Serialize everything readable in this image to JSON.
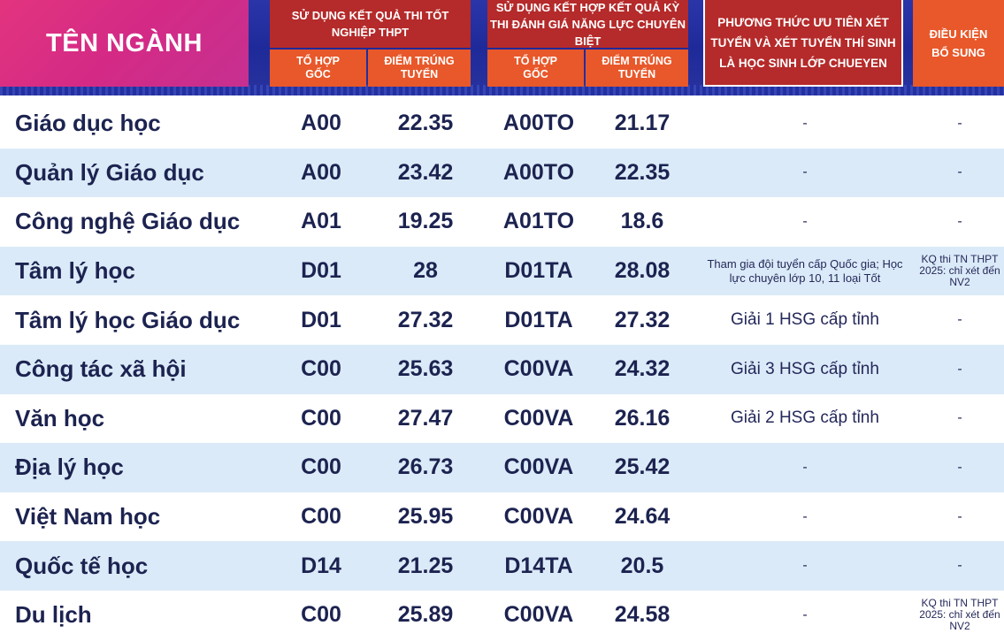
{
  "header": {
    "major_title": "TÊN NGÀNH",
    "group1": {
      "title": "Sử dụng kết quả thi tốt nghiệp THPT",
      "col_a": "Tổ hợp gốc",
      "col_b": "Điểm trúng tuyển"
    },
    "group2": {
      "title": "Sử dụng kết hợp kết quả kỳ thi đánh giá năng lực chuyên biệt",
      "col_a": "Tổ hợp gốc",
      "col_b": "Điểm trúng tuyển"
    },
    "group3_title": "Phương thức ưu tiên xét tuyển và xét tuyển thí sinh là học sinh lớp chueyen",
    "group4_title": "Điều kiện bổ sung"
  },
  "rows": [
    {
      "name": "Giáo dục học",
      "combo1": "A00",
      "score1": "22.35",
      "combo2": "A00TO",
      "score2": "21.17",
      "priority": "-",
      "extra": "-"
    },
    {
      "name": "Quản lý Giáo dục",
      "combo1": "A00",
      "score1": "23.42",
      "combo2": "A00TO",
      "score2": "22.35",
      "priority": "-",
      "extra": "-"
    },
    {
      "name": "Công nghệ Giáo dục",
      "combo1": "A01",
      "score1": "19.25",
      "combo2": "A01TO",
      "score2": "18.6",
      "priority": "-",
      "extra": "-"
    },
    {
      "name": "Tâm lý học",
      "combo1": "D01",
      "score1": "28",
      "combo2": "D01TA",
      "score2": "28.08",
      "priority": "Tham gia đội tuyển cấp Quốc gia; Học lực chuyên lớp 10, 11 loại Tốt",
      "extra": "KQ thi TN THPT 2025: chỉ xét đến NV2"
    },
    {
      "name": "Tâm lý học Giáo dục",
      "combo1": "D01",
      "score1": "27.32",
      "combo2": "D01TA",
      "score2": "27.32",
      "priority": "Giải 1 HSG cấp tỉnh",
      "extra": "-"
    },
    {
      "name": "Công tác xã hội",
      "combo1": "C00",
      "score1": "25.63",
      "combo2": "C00VA",
      "score2": "24.32",
      "priority": "Giải 3 HSG cấp tỉnh",
      "extra": "-"
    },
    {
      "name": "Văn học",
      "combo1": "C00",
      "score1": "27.47",
      "combo2": "C00VA",
      "score2": "26.16",
      "priority": "Giải 2 HSG cấp tỉnh",
      "extra": "-"
    },
    {
      "name": "Địa lý học",
      "combo1": "C00",
      "score1": "26.73",
      "combo2": "C00VA",
      "score2": "25.42",
      "priority": "-",
      "extra": "-"
    },
    {
      "name": "Việt Nam học",
      "combo1": "C00",
      "score1": "25.95",
      "combo2": "C00VA",
      "score2": "24.64",
      "priority": "-",
      "extra": "-"
    },
    {
      "name": "Quốc tế học",
      "combo1": "D14",
      "score1": "21.25",
      "combo2": "D14TA",
      "score2": "20.5",
      "priority": "-",
      "extra": "-"
    },
    {
      "name": "Du lịch",
      "combo1": "C00",
      "score1": "25.89",
      "combo2": "C00VA",
      "score2": "24.58",
      "priority": "-",
      "extra": "KQ thi TN THPT 2025: chỉ xét đến NV2"
    }
  ]
}
